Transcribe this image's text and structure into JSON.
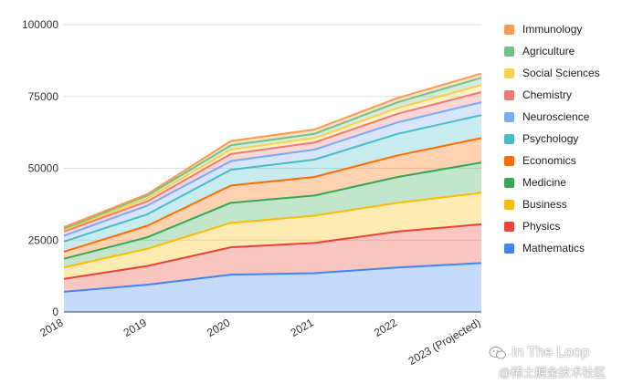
{
  "chart_data": {
    "type": "area",
    "stacked": true,
    "categories": [
      "2018",
      "2019",
      "2020",
      "2021",
      "2022",
      "2023 (Projected)"
    ],
    "ylim": [
      0,
      100000
    ],
    "yticks": [
      0,
      25000,
      50000,
      75000,
      100000
    ],
    "ytick_labels": [
      "0",
      "25000",
      "50000",
      "75000",
      "100000"
    ],
    "grid": true,
    "legend_position": "right",
    "series": [
      {
        "name": "Mathematics",
        "color": "#4285f4",
        "values": [
          7000,
          9500,
          13000,
          13500,
          15500,
          17000
        ]
      },
      {
        "name": "Physics",
        "color": "#ea4335",
        "values": [
          4500,
          6500,
          9500,
          10500,
          12500,
          13500
        ]
      },
      {
        "name": "Business",
        "color": "#fbbc04",
        "values": [
          4000,
          6000,
          8500,
          9500,
          10000,
          11000
        ]
      },
      {
        "name": "Medicine",
        "color": "#34a853",
        "values": [
          3000,
          4000,
          7000,
          7000,
          9000,
          10500
        ]
      },
      {
        "name": "Economics",
        "color": "#ff6d01",
        "values": [
          2500,
          4000,
          6000,
          6500,
          7500,
          8500
        ]
      },
      {
        "name": "Psychology",
        "color": "#46bdc6",
        "values": [
          3500,
          4000,
          5500,
          6000,
          7500,
          8000
        ]
      },
      {
        "name": "Neuroscience",
        "color": "#7baaf7",
        "values": [
          2000,
          3000,
          3000,
          3500,
          4000,
          4500
        ]
      },
      {
        "name": "Chemistry",
        "color": "#f07b72",
        "values": [
          1500,
          1500,
          2500,
          2500,
          3000,
          3500
        ]
      },
      {
        "name": "Social Sciences",
        "color": "#fcd04f",
        "values": [
          500,
          1000,
          1500,
          1500,
          2000,
          2500
        ]
      },
      {
        "name": "Agriculture",
        "color": "#71c287",
        "values": [
          500,
          1000,
          1500,
          1500,
          2000,
          2500
        ]
      },
      {
        "name": "Immunology",
        "color": "#ff994d",
        "values": [
          500,
          500,
          1500,
          1500,
          1500,
          1500
        ]
      }
    ]
  },
  "watermark": {
    "title": "In The Loop",
    "subtitle": "@稀土掘金技术社区",
    "icon": "wechat-icon"
  }
}
